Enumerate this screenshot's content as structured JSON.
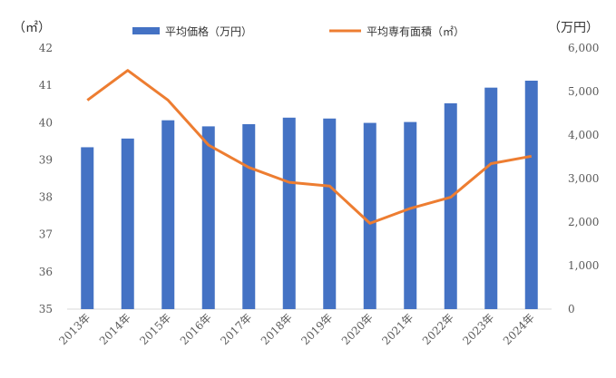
{
  "chart_data": {
    "type": "bar+line",
    "categories": [
      "2013年",
      "2014年",
      "2015年",
      "2016年",
      "2017年",
      "2018年",
      "2019年",
      "2020年",
      "2021年",
      "2022年",
      "2023年",
      "2024年"
    ],
    "series": [
      {
        "name": "平均価格（万円）",
        "type": "bar",
        "axis": "right",
        "color": "#4472C4",
        "values": [
          3720,
          3920,
          4340,
          4200,
          4250,
          4400,
          4380,
          4280,
          4300,
          4730,
          5090,
          5250
        ]
      },
      {
        "name": "平均専有面積（㎡）",
        "type": "line",
        "axis": "left",
        "color": "#ED7D31",
        "values": [
          40.6,
          41.4,
          40.6,
          39.4,
          38.8,
          38.4,
          38.3,
          37.3,
          37.7,
          38.0,
          38.9,
          39.1
        ]
      }
    ],
    "left_axis": {
      "unit": "（㎡）",
      "min": 35,
      "max": 42,
      "ticks": [
        "35",
        "36",
        "37",
        "38",
        "39",
        "40",
        "41",
        "42"
      ]
    },
    "right_axis": {
      "unit": "（万円）",
      "min": 0,
      "max": 6000,
      "ticks": [
        "0",
        "1,000",
        "2,000",
        "3,000",
        "4,000",
        "5,000",
        "6,000"
      ]
    },
    "legend_position": "top",
    "grid": false
  }
}
